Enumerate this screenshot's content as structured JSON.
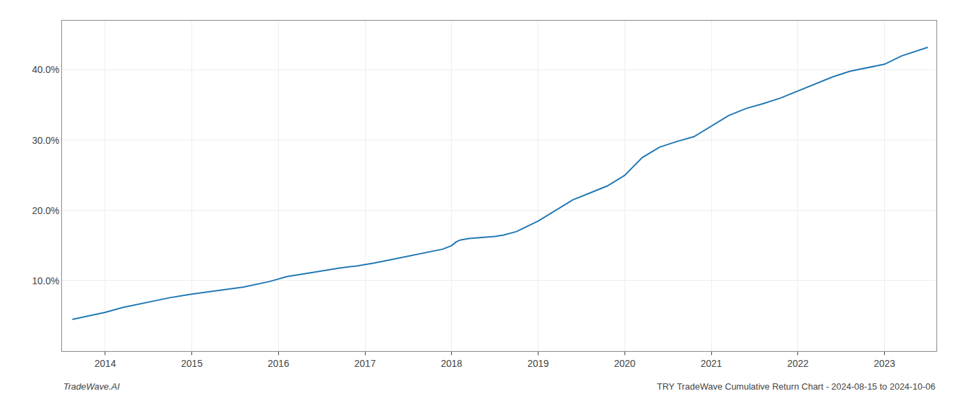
{
  "chart_data": {
    "type": "line",
    "x": [
      2013.62,
      2013.8,
      2014.0,
      2014.2,
      2014.5,
      2014.75,
      2015.0,
      2015.3,
      2015.6,
      2015.9,
      2016.1,
      2016.3,
      2016.5,
      2016.7,
      2016.9,
      2017.1,
      2017.3,
      2017.5,
      2017.7,
      2017.9,
      2018.0,
      2018.05,
      2018.1,
      2018.2,
      2018.3,
      2018.4,
      2018.5,
      2018.6,
      2018.75,
      2019.0,
      2019.2,
      2019.4,
      2019.6,
      2019.8,
      2020.0,
      2020.2,
      2020.4,
      2020.6,
      2020.8,
      2021.0,
      2021.2,
      2021.4,
      2021.6,
      2021.8,
      2022.0,
      2022.2,
      2022.4,
      2022.6,
      2022.8,
      2023.0,
      2023.2,
      2023.5
    ],
    "values": [
      4.5,
      5.0,
      5.5,
      6.2,
      7.0,
      7.6,
      8.1,
      8.6,
      9.1,
      9.9,
      10.6,
      11.0,
      11.4,
      11.8,
      12.1,
      12.5,
      13.0,
      13.5,
      14.0,
      14.5,
      15.0,
      15.5,
      15.8,
      16.0,
      16.1,
      16.2,
      16.3,
      16.5,
      17.0,
      18.5,
      20.0,
      21.5,
      22.5,
      23.5,
      25.0,
      27.5,
      29.0,
      29.8,
      30.5,
      32.0,
      33.5,
      34.5,
      35.2,
      36.0,
      37.0,
      38.0,
      39.0,
      39.8,
      40.3,
      40.8,
      42.0,
      43.2
    ],
    "color": "#1f77b4",
    "xlim": [
      2013.5,
      2023.6
    ],
    "ylim": [
      0,
      47
    ],
    "xticks": [
      2014,
      2015,
      2016,
      2017,
      2018,
      2019,
      2020,
      2021,
      2022,
      2023
    ],
    "yticks": [
      {
        "value": 10.0,
        "label": "10.0%"
      },
      {
        "value": 20.0,
        "label": "20.0%"
      },
      {
        "value": 30.0,
        "label": "30.0%"
      },
      {
        "value": 40.0,
        "label": "40.0%"
      }
    ],
    "grid": true,
    "annotations": [
      "TradeWave.AI",
      "TRY TradeWave Cumulative Return Chart - 2024-08-15 to 2024-10-06"
    ]
  }
}
